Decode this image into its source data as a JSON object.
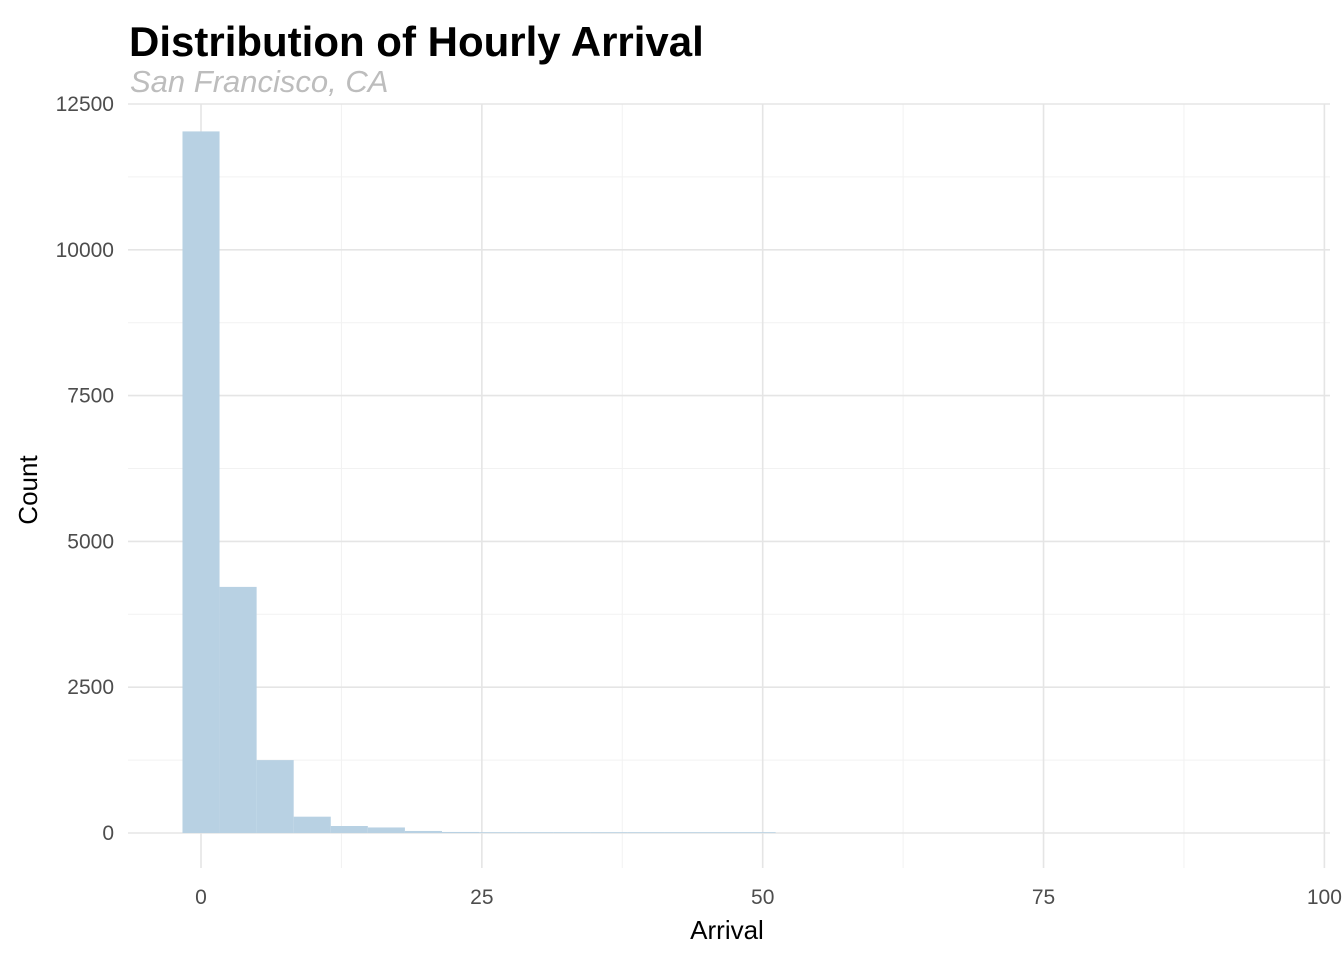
{
  "chart_data": {
    "type": "bar",
    "title": "Distribution of Hourly Arrival",
    "subtitle": "San Francisco, CA",
    "xlabel": "Arrival",
    "ylabel": "Count",
    "xlim": [
      -6.5,
      100.5
    ],
    "ylim": [
      -600,
      12500
    ],
    "x_ticks": [
      0,
      25,
      50,
      75,
      100
    ],
    "x_minor_ticks": [
      12.5,
      37.5,
      62.5,
      87.5
    ],
    "y_ticks": [
      0,
      2500,
      5000,
      7500,
      10000,
      12500
    ],
    "y_minor_ticks": [
      1250,
      3750,
      6250,
      8750,
      11250
    ],
    "grid": true,
    "bar_color": "#b8d1e3",
    "bins": [
      {
        "x0": -1.65,
        "x1": 1.65,
        "count": 12030
      },
      {
        "x0": 1.65,
        "x1": 4.95,
        "count": 4220
      },
      {
        "x0": 4.95,
        "x1": 8.25,
        "count": 1250
      },
      {
        "x0": 8.25,
        "x1": 11.55,
        "count": 280
      },
      {
        "x0": 11.55,
        "x1": 14.85,
        "count": 120
      },
      {
        "x0": 14.85,
        "x1": 18.15,
        "count": 95
      },
      {
        "x0": 18.15,
        "x1": 21.45,
        "count": 35
      },
      {
        "x0": 21.45,
        "x1": 24.75,
        "count": 18
      },
      {
        "x0": 24.75,
        "x1": 28.05,
        "count": 12
      },
      {
        "x0": 28.05,
        "x1": 31.35,
        "count": 10
      },
      {
        "x0": 31.35,
        "x1": 34.65,
        "count": 8
      },
      {
        "x0": 34.65,
        "x1": 37.95,
        "count": 4
      },
      {
        "x0": 37.95,
        "x1": 41.25,
        "count": 6
      },
      {
        "x0": 41.25,
        "x1": 44.55,
        "count": 2
      },
      {
        "x0": 44.55,
        "x1": 47.85,
        "count": 1
      },
      {
        "x0": 47.85,
        "x1": 51.15,
        "count": 1
      }
    ]
  }
}
